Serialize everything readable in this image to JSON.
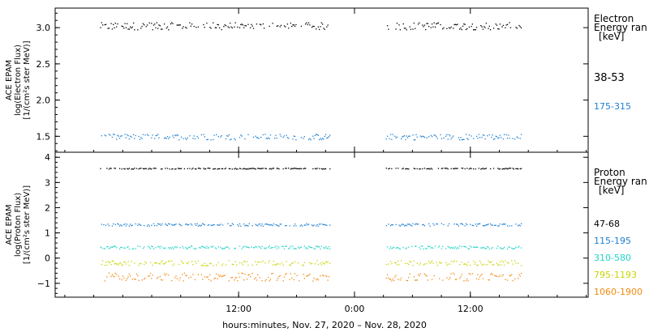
{
  "chart_data": [
    {
      "type": "scatter",
      "panel": "electron",
      "ylabel": [
        "ACE EPAM",
        "log(Electron Flux)",
        "[1/(cm²s ster MeV)]"
      ],
      "ylim": [
        1.28,
        3.27
      ],
      "yticks": [
        1.5,
        2.0,
        2.5,
        3.0
      ],
      "ytick_labels": [
        "1.5",
        "2.0",
        "2.5",
        "3.0"
      ],
      "legend": {
        "title": [
          "Electron",
          "Energy ran",
          "[keV]"
        ],
        "entries": [
          {
            "label": "38-53",
            "color": "#000000"
          },
          {
            "label": "175-315",
            "color": "#1f7fd0"
          }
        ]
      },
      "series": [
        {
          "name": "38-53",
          "color": "#000000",
          "mean": 3.02,
          "spread": 0.05,
          "segments": [
            [
              -2.3,
              21.5
            ],
            [
              27.3,
              41.3
            ]
          ]
        },
        {
          "name": "175-315",
          "color": "#1f7fd0",
          "mean": 1.49,
          "spread": 0.04,
          "segments": [
            [
              -2.3,
              21.5
            ],
            [
              27.3,
              41.3
            ]
          ]
        }
      ]
    },
    {
      "type": "scatter",
      "panel": "proton",
      "ylabel": [
        "ACE EPAM",
        "log(Proton Flux)",
        "[1/(cm²s ster MeV)]"
      ],
      "ylim": [
        -1.55,
        4.2
      ],
      "yticks": [
        -1,
        0,
        1,
        2,
        3,
        4
      ],
      "ytick_labels": [
        "−1",
        "0",
        "1",
        "2",
        "3",
        "4"
      ],
      "legend": {
        "title": [
          "Proton",
          "Energy ran",
          "[keV]"
        ],
        "entries": [
          {
            "label": "47-68",
            "color": "#000000"
          },
          {
            "label": "115-195",
            "color": "#1f7fd0"
          },
          {
            "label": "310-580",
            "color": "#22d4c8"
          },
          {
            "label": "795-1193",
            "color": "#c8d400"
          },
          {
            "label": "1060-1900",
            "color": "#f08a10"
          }
        ]
      },
      "series": [
        {
          "name": "47-68",
          "color": "#000000",
          "mean": 3.55,
          "spread": 0.02,
          "segments": [
            [
              -2.3,
              21.5
            ],
            [
              27.3,
              41.3
            ]
          ]
        },
        {
          "name": "115-195",
          "color": "#1f7fd0",
          "mean": 1.32,
          "spread": 0.05,
          "segments": [
            [
              -2.3,
              21.5
            ],
            [
              27.3,
              41.3
            ]
          ]
        },
        {
          "name": "310-580",
          "color": "#22d4c8",
          "mean": 0.42,
          "spread": 0.06,
          "segments": [
            [
              -2.3,
              21.5
            ],
            [
              27.3,
              41.3
            ]
          ]
        },
        {
          "name": "795-1193",
          "color": "#c8d400",
          "mean": -0.2,
          "spread": 0.1,
          "segments": [
            [
              -2.3,
              21.5
            ],
            [
              27.3,
              41.3
            ]
          ]
        },
        {
          "name": "1060-1900",
          "color": "#f08a10",
          "mean": -0.75,
          "spread": 0.16,
          "segments": [
            [
              -2.3,
              21.5
            ],
            [
              27.3,
              41.3
            ]
          ]
        }
      ]
    }
  ],
  "x_axis": {
    "xlim": [
      -7.0,
      48.2
    ],
    "ticks": [
      12,
      24,
      36
    ],
    "tick_labels": [
      "12:00",
      "0:00",
      "12:00"
    ],
    "label": "hours:minutes, Nov. 27, 2020 – Nov. 28, 2020"
  }
}
